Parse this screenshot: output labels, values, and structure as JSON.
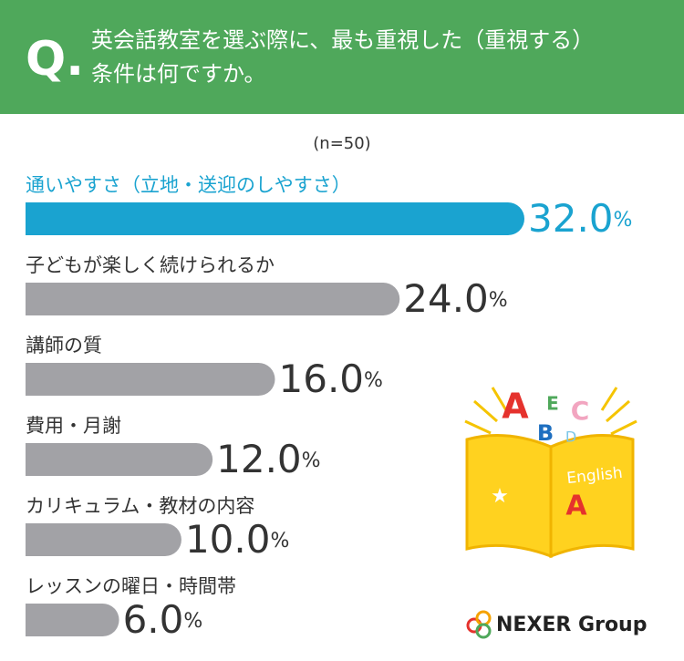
{
  "header": {
    "mark": "Q.",
    "question_lines": [
      "英会話教室を選ぶ際に、最も重視した（重視する）",
      "条件は何ですか。"
    ]
  },
  "chart_data": {
    "type": "bar",
    "orientation": "horizontal",
    "subtitle": "(n=50)",
    "categories": [
      "通いやすさ（立地・送迎のしやすさ）",
      "子どもが楽しく続けられるか",
      "講師の質",
      "費用・月謝",
      "カリキュラム・教材の内容",
      "レッスンの曜日・時間帯"
    ],
    "values": [
      32,
      24,
      16,
      12,
      10,
      6
    ],
    "value_labels": [
      "32.0%",
      "24.0%",
      "16.0%",
      "12.0%",
      "10.0%",
      "6.0%"
    ],
    "colors": [
      "#1aa3d0",
      "#a2a2a6",
      "#a2a2a6",
      "#a2a2a6",
      "#a2a2a6",
      "#a2a2a6"
    ],
    "label_colors": [
      "#1aa3d0",
      "#333333",
      "#333333",
      "#333333",
      "#333333",
      "#333333"
    ]
  },
  "illustration": {
    "book_text": "English",
    "letters": [
      "A",
      "B",
      "C",
      "D",
      "E"
    ]
  },
  "logo": "NEXER Group"
}
